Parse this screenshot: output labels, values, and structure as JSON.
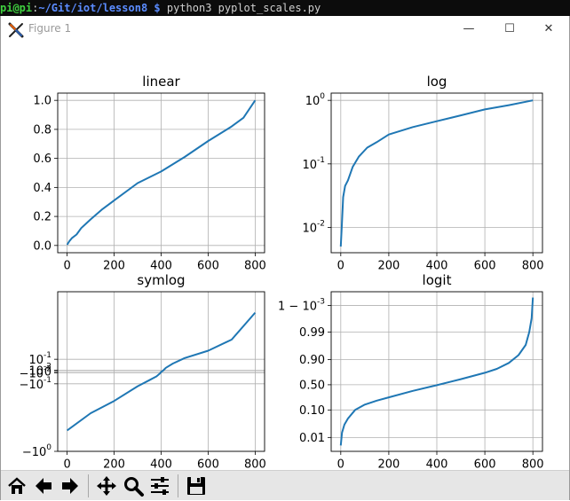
{
  "terminal": {
    "user_host": "pi@pi",
    "colon": ":",
    "path": "~/Git/iot/lesson8 $",
    "command": " python3 pyplot_scales.py"
  },
  "window": {
    "title": "Figure 1",
    "minimize_glyph": "—",
    "maximize_glyph": "☐",
    "close_glyph": "✕",
    "app_icon": "matplotlib-x-icon"
  },
  "toolbar": {
    "buttons": [
      "home-icon",
      "back-arrow-icon",
      "forward-arrow-icon",
      "pan-icon",
      "zoom-icon",
      "subplots-config-icon",
      "save-icon"
    ]
  },
  "chart_data": [
    {
      "type": "line",
      "title": "linear",
      "yscale": "linear",
      "xlim": [
        -40,
        840
      ],
      "ylim": [
        -0.05,
        1.05
      ],
      "xticks": [
        "0",
        "200",
        "400",
        "600",
        "800"
      ],
      "yticks": [
        "0.0",
        "0.2",
        "0.4",
        "0.6",
        "0.8",
        "1.0"
      ],
      "grid": true,
      "x": [
        0,
        10,
        20,
        40,
        60,
        100,
        150,
        200,
        300,
        400,
        500,
        600,
        700,
        750,
        800
      ],
      "y": [
        0.005,
        0.03,
        0.05,
        0.075,
        0.12,
        0.18,
        0.25,
        0.31,
        0.43,
        0.51,
        0.61,
        0.72,
        0.82,
        0.88,
        1.0
      ],
      "color": "#1f77b4"
    },
    {
      "type": "line",
      "title": "log",
      "yscale": "log",
      "xlim": [
        -40,
        840
      ],
      "ylim": [
        0.004,
        1.3
      ],
      "xticks": [
        "0",
        "200",
        "400",
        "600",
        "800"
      ],
      "yticks": [
        "10^-2",
        "10^-1",
        "10^0"
      ],
      "grid": true,
      "x": [
        0,
        4,
        10,
        18,
        30,
        50,
        75,
        110,
        150,
        200,
        300,
        400,
        500,
        600,
        700,
        800
      ],
      "y": [
        0.005,
        0.01,
        0.03,
        0.045,
        0.055,
        0.09,
        0.13,
        0.18,
        0.22,
        0.29,
        0.38,
        0.47,
        0.58,
        0.72,
        0.84,
        1.0
      ],
      "color": "#1f77b4"
    },
    {
      "type": "line",
      "title": "symlog",
      "yscale": "symlog",
      "xlim": [
        -40,
        840
      ],
      "ylim": [
        -1.0,
        1.0
      ],
      "xticks": [
        "0",
        "200",
        "400",
        "600",
        "800"
      ],
      "yticks": [
        "−10^0",
        "−10^-1",
        "−10^-2",
        "0",
        "10^-2",
        "10^-1"
      ],
      "grid": true,
      "x": [
        0,
        100,
        200,
        300,
        350,
        380,
        395,
        400,
        405,
        410,
        420,
        450,
        500,
        600,
        700,
        800
      ],
      "y": [
        -0.48,
        -0.34,
        -0.24,
        -0.12,
        -0.07,
        -0.04,
        -0.015,
        -0.003,
        0.003,
        0.011,
        0.03,
        0.065,
        0.11,
        0.17,
        0.26,
        0.48
      ],
      "color": "#1f77b4"
    },
    {
      "type": "line",
      "title": "logit",
      "yscale": "logit",
      "xlim": [
        -40,
        840
      ],
      "ylim": [
        0.003,
        0.9997
      ],
      "xticks": [
        "0",
        "200",
        "400",
        "600",
        "800"
      ],
      "yticks": [
        "0.01",
        "0.10",
        "0.50",
        "0.90",
        "0.99",
        "1 − 10^-3"
      ],
      "grid": true,
      "x": [
        0,
        5,
        15,
        30,
        60,
        100,
        150,
        200,
        300,
        400,
        500,
        600,
        650,
        700,
        740,
        770,
        785,
        795,
        800
      ],
      "y": [
        0.005,
        0.015,
        0.03,
        0.05,
        0.1,
        0.15,
        0.2,
        0.25,
        0.37,
        0.49,
        0.62,
        0.74,
        0.8,
        0.87,
        0.93,
        0.97,
        0.99,
        0.997,
        0.9995
      ],
      "color": "#1f77b4"
    }
  ]
}
